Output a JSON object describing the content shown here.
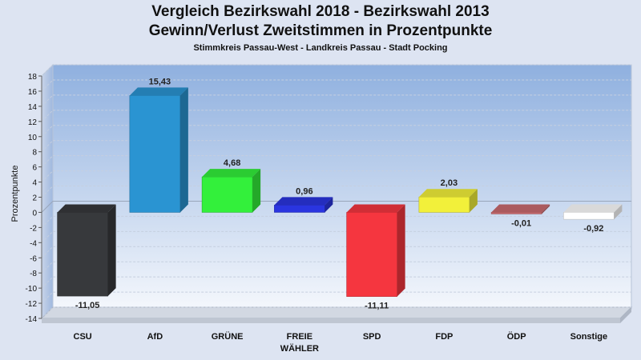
{
  "chart_data": {
    "type": "bar",
    "title": "Vergleich Bezirkswahl 2018 - Bezirkswahl 2013",
    "subtitle": "Gewinn/Verlust Zweitstimmen in Prozentpunkte",
    "subsubtitle": "Stimmkreis Passau-West - Landkreis Passau - Stadt Pocking",
    "ylabel": "Prozentpunkte",
    "xlabel": "",
    "ylim": [
      -14,
      18
    ],
    "yticks": [
      18,
      16,
      14,
      12,
      10,
      8,
      6,
      4,
      2,
      0,
      -2,
      -4,
      -6,
      -8,
      -10,
      -12,
      -14
    ],
    "grid": true,
    "categories": [
      {
        "line1": "CSU",
        "line2": ""
      },
      {
        "line1": "AfD",
        "line2": ""
      },
      {
        "line1": "GRÜNE",
        "line2": ""
      },
      {
        "line1": "FREIE",
        "line2": "WÄHLER"
      },
      {
        "line1": "SPD",
        "line2": ""
      },
      {
        "line1": "FDP",
        "line2": ""
      },
      {
        "line1": "ÖDP",
        "line2": ""
      },
      {
        "line1": "Sonstige",
        "line2": ""
      }
    ],
    "values": [
      -11.05,
      15.43,
      4.68,
      0.96,
      -11.11,
      2.03,
      -0.01,
      -0.92
    ],
    "value_labels": [
      "-11,05",
      "15,43",
      "4,68",
      "0,96",
      "-11,11",
      "2,03",
      "-0,01",
      "-0,92"
    ],
    "colors": [
      "#37393c",
      "#2a94d2",
      "#33f03b",
      "#2a35e0",
      "#f5363f",
      "#f2f03a",
      "#c96a6e",
      "#ffffff"
    ]
  }
}
